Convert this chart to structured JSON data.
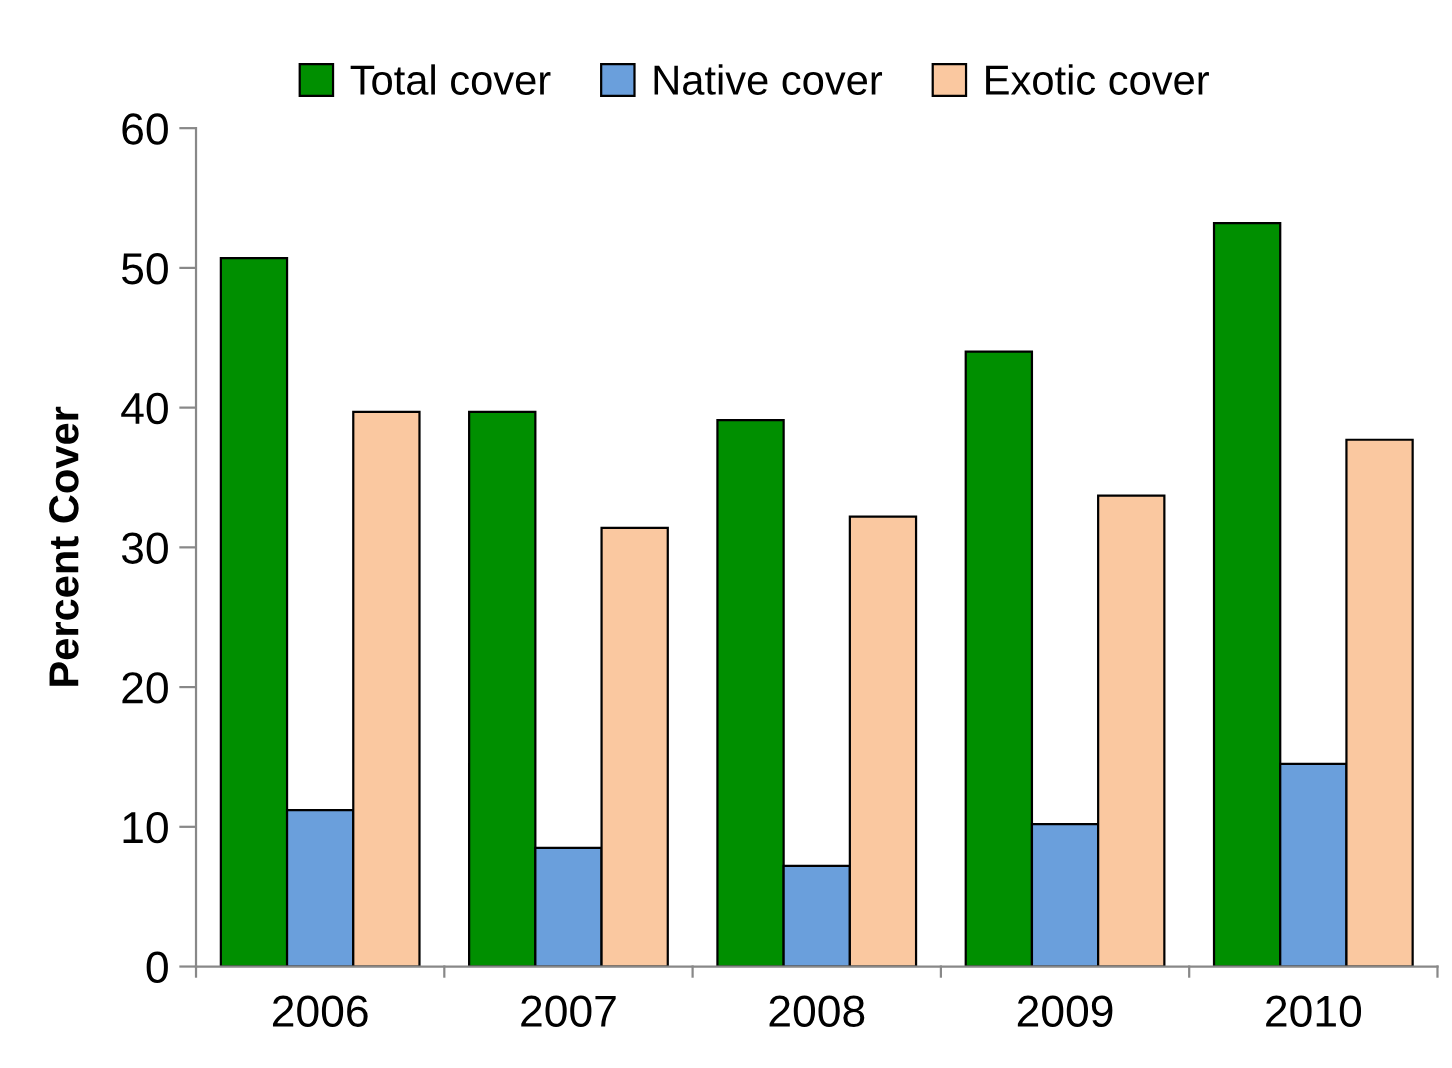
{
  "chart_data": {
    "type": "bar",
    "ylabel": "Percent Cover",
    "categories": [
      "2006",
      "2007",
      "2008",
      "2009",
      "2010"
    ],
    "series": [
      {
        "name": "Total cover",
        "color": "#008f00",
        "values": [
          50.7,
          39.7,
          39.1,
          44.0,
          53.2
        ]
      },
      {
        "name": "Native cover",
        "color": "#6a9fdc",
        "values": [
          11.2,
          8.5,
          7.2,
          10.2,
          14.5
        ]
      },
      {
        "name": "Exotic cover",
        "color": "#fac8a0",
        "values": [
          39.7,
          31.4,
          32.2,
          33.7,
          37.7
        ]
      }
    ],
    "ylim": [
      0,
      60
    ],
    "yticks": [
      0,
      10,
      20,
      30,
      40,
      50,
      60
    ],
    "grid": false,
    "legend": "top"
  }
}
